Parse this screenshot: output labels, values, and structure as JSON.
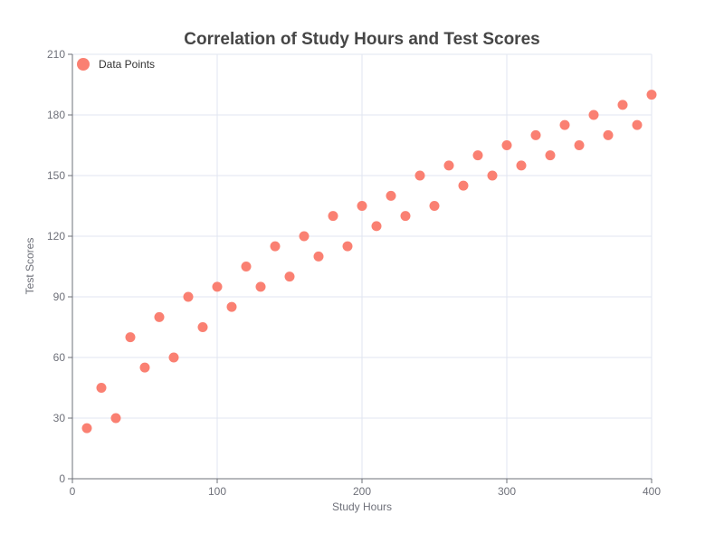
{
  "colors": {
    "point": "#fa8072",
    "grid": "#e0e6f1",
    "axis": "#6e7079",
    "title": "#464646"
  },
  "chart_data": {
    "type": "scatter",
    "title": "Correlation of Study Hours and Test Scores",
    "xlabel": "Study Hours",
    "ylabel": "Test Scores",
    "xlim": [
      0,
      400
    ],
    "ylim": [
      0,
      210
    ],
    "x_ticks": [
      "0",
      "100",
      "200",
      "300",
      "400"
    ],
    "y_ticks": [
      "0",
      "30",
      "60",
      "90",
      "120",
      "150",
      "180",
      "210"
    ],
    "grid": true,
    "legend_position": "top-left",
    "series": [
      {
        "name": "Data Points",
        "color": "#fa8072",
        "x": [
          10,
          20,
          30,
          40,
          50,
          60,
          70,
          80,
          90,
          100,
          110,
          120,
          130,
          140,
          150,
          160,
          170,
          180,
          190,
          200,
          210,
          220,
          230,
          240,
          250,
          260,
          270,
          280,
          290,
          300,
          310,
          320,
          330,
          340,
          350,
          360,
          370,
          380,
          390,
          400
        ],
        "y": [
          25,
          45,
          30,
          70,
          55,
          80,
          60,
          90,
          75,
          95,
          85,
          105,
          95,
          115,
          100,
          120,
          110,
          130,
          115,
          135,
          125,
          140,
          130,
          150,
          135,
          155,
          145,
          160,
          150,
          165,
          155,
          170,
          160,
          175,
          165,
          180,
          170,
          185,
          175,
          190
        ]
      }
    ]
  }
}
